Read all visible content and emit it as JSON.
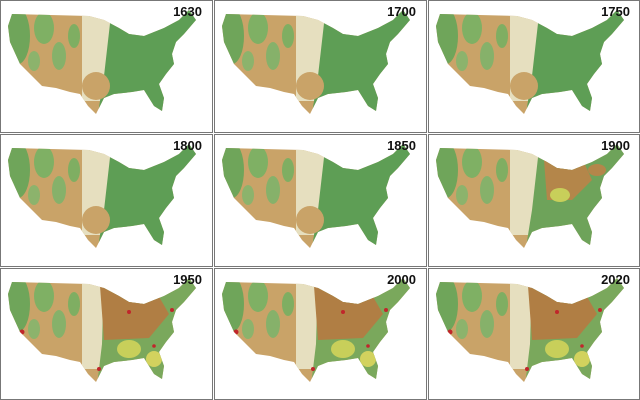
{
  "panels": [
    {
      "label": "1630"
    },
    {
      "label": "1700"
    },
    {
      "label": "1750"
    },
    {
      "label": "1800"
    },
    {
      "label": "1850"
    },
    {
      "label": "1900"
    },
    {
      "label": "1950"
    },
    {
      "label": "2000"
    },
    {
      "label": "2020"
    }
  ]
}
